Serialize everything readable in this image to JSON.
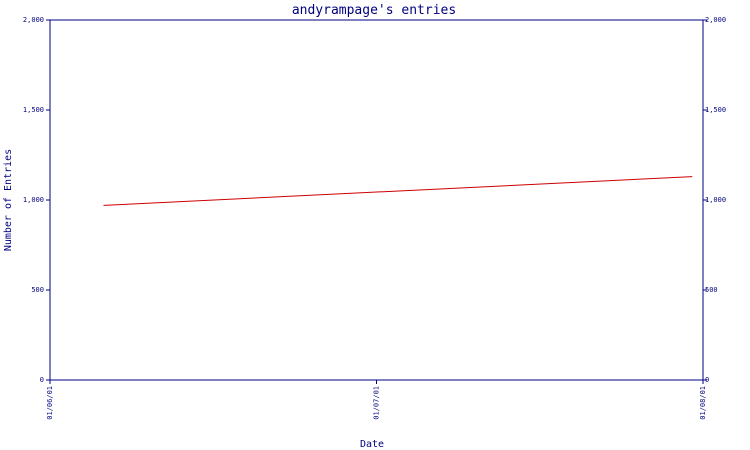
{
  "chart_data": {
    "type": "line",
    "title": "andyrampage's entries",
    "xlabel": "Date",
    "ylabel": "Number of Entries",
    "x_tick_labels": [
      "01/06/01",
      "01/07/01",
      "01/08/01"
    ],
    "x_range": [
      "2001-06-01",
      "2001-08-01"
    ],
    "y_ticks": [
      0,
      500,
      1000,
      1500,
      2000
    ],
    "y_tick_labels": [
      "0",
      "500",
      "1,000",
      "1,500",
      "2,000"
    ],
    "ylim": [
      0,
      2000
    ],
    "series": [
      {
        "color": "#cc0000",
        "points": [
          {
            "x": "2001-06-06",
            "y": 970
          },
          {
            "x": "2001-07-31",
            "y": 1130
          }
        ]
      }
    ],
    "colors": {
      "axes": "#000080",
      "line": "#cc0000",
      "background": "#ffffff"
    }
  }
}
